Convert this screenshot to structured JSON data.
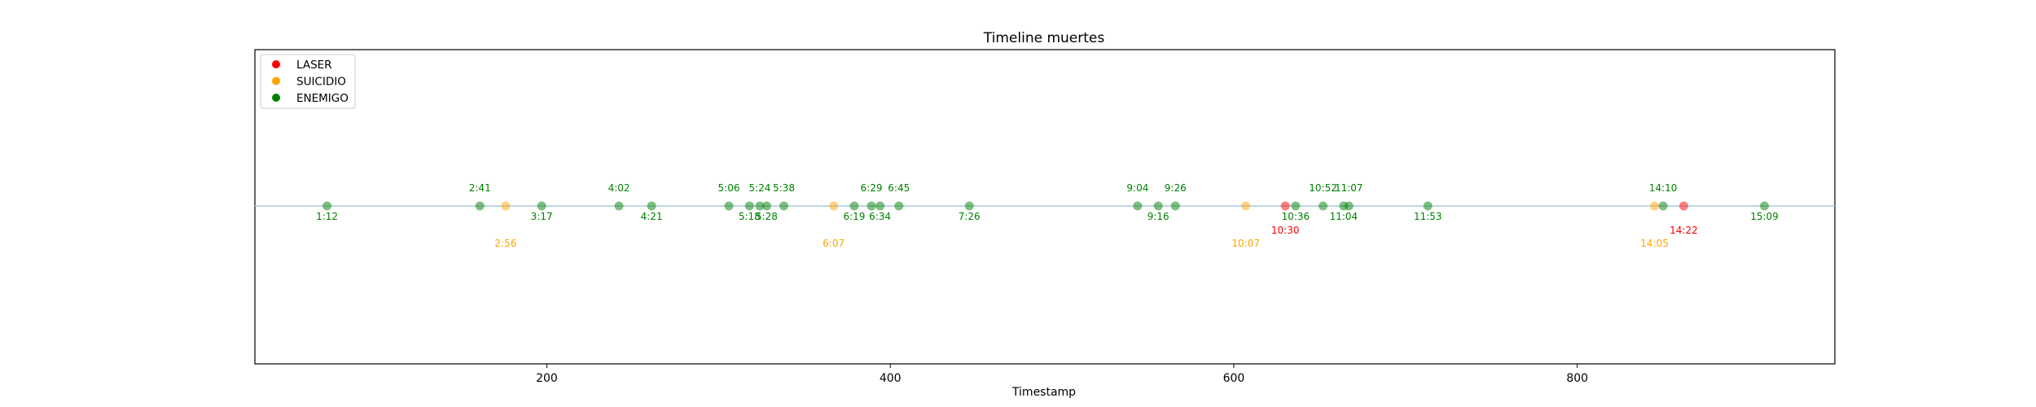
{
  "chart_data": {
    "type": "scatter",
    "title": "Timeline muertes",
    "xlabel": "Timestamp",
    "ylabel": "",
    "xlim": [
      30,
      950
    ],
    "xticks": [
      {
        "value": 200,
        "label": "200"
      },
      {
        "value": 400,
        "label": "400"
      },
      {
        "value": 600,
        "label": "600"
      },
      {
        "value": 800,
        "label": "800"
      }
    ],
    "grid": false,
    "legend_position": "top-left",
    "series": [
      {
        "name": "LASER",
        "color": "#ff0000",
        "points": [
          {
            "x": 630,
            "label": "10:30",
            "label_pos": "below"
          },
          {
            "x": 862,
            "label": "14:22",
            "label_pos": "below"
          }
        ]
      },
      {
        "name": "SUICIDIO",
        "color": "#ffa500",
        "points": [
          {
            "x": 176,
            "label": "2:56",
            "label_pos": "below-far"
          },
          {
            "x": 367,
            "label": "6:07",
            "label_pos": "below-far"
          },
          {
            "x": 607,
            "label": "10:07",
            "label_pos": "below-far"
          },
          {
            "x": 845,
            "label": "14:05",
            "label_pos": "below-far"
          }
        ]
      },
      {
        "name": "ENEMIGO",
        "color": "#008000",
        "points": [
          {
            "x": 72,
            "label": "1:12",
            "label_pos": "below"
          },
          {
            "x": 161,
            "label": "2:41",
            "label_pos": "above"
          },
          {
            "x": 197,
            "label": "3:17",
            "label_pos": "below"
          },
          {
            "x": 242,
            "label": "4:02",
            "label_pos": "above"
          },
          {
            "x": 261,
            "label": "4:21",
            "label_pos": "below"
          },
          {
            "x": 306,
            "label": "5:06",
            "label_pos": "above"
          },
          {
            "x": 318,
            "label": "5:18",
            "label_pos": "below"
          },
          {
            "x": 324,
            "label": "5:24",
            "label_pos": "above"
          },
          {
            "x": 328,
            "label": "5:28",
            "label_pos": "below"
          },
          {
            "x": 338,
            "label": "5:38",
            "label_pos": "above"
          },
          {
            "x": 379,
            "label": "6:19",
            "label_pos": "below"
          },
          {
            "x": 389,
            "label": "6:29",
            "label_pos": "above"
          },
          {
            "x": 394,
            "label": "6:34",
            "label_pos": "below"
          },
          {
            "x": 405,
            "label": "6:45",
            "label_pos": "above"
          },
          {
            "x": 446,
            "label": "7:26",
            "label_pos": "below"
          },
          {
            "x": 544,
            "label": "9:04",
            "label_pos": "above"
          },
          {
            "x": 556,
            "label": "9:16",
            "label_pos": "below"
          },
          {
            "x": 566,
            "label": "9:26",
            "label_pos": "above"
          },
          {
            "x": 636,
            "label": "10:36",
            "label_pos": "below"
          },
          {
            "x": 652,
            "label": "10:52",
            "label_pos": "above"
          },
          {
            "x": 664,
            "label": "11:04",
            "label_pos": "below"
          },
          {
            "x": 667,
            "label": "11:07",
            "label_pos": "above"
          },
          {
            "x": 713,
            "label": "11:53",
            "label_pos": "below"
          },
          {
            "x": 850,
            "label": "14:10",
            "label_pos": "above"
          },
          {
            "x": 909,
            "label": "15:09",
            "label_pos": "below"
          }
        ]
      }
    ]
  },
  "colors": {
    "baseline": "#a6c8e4",
    "axes": "#000000",
    "text": "#000000"
  }
}
